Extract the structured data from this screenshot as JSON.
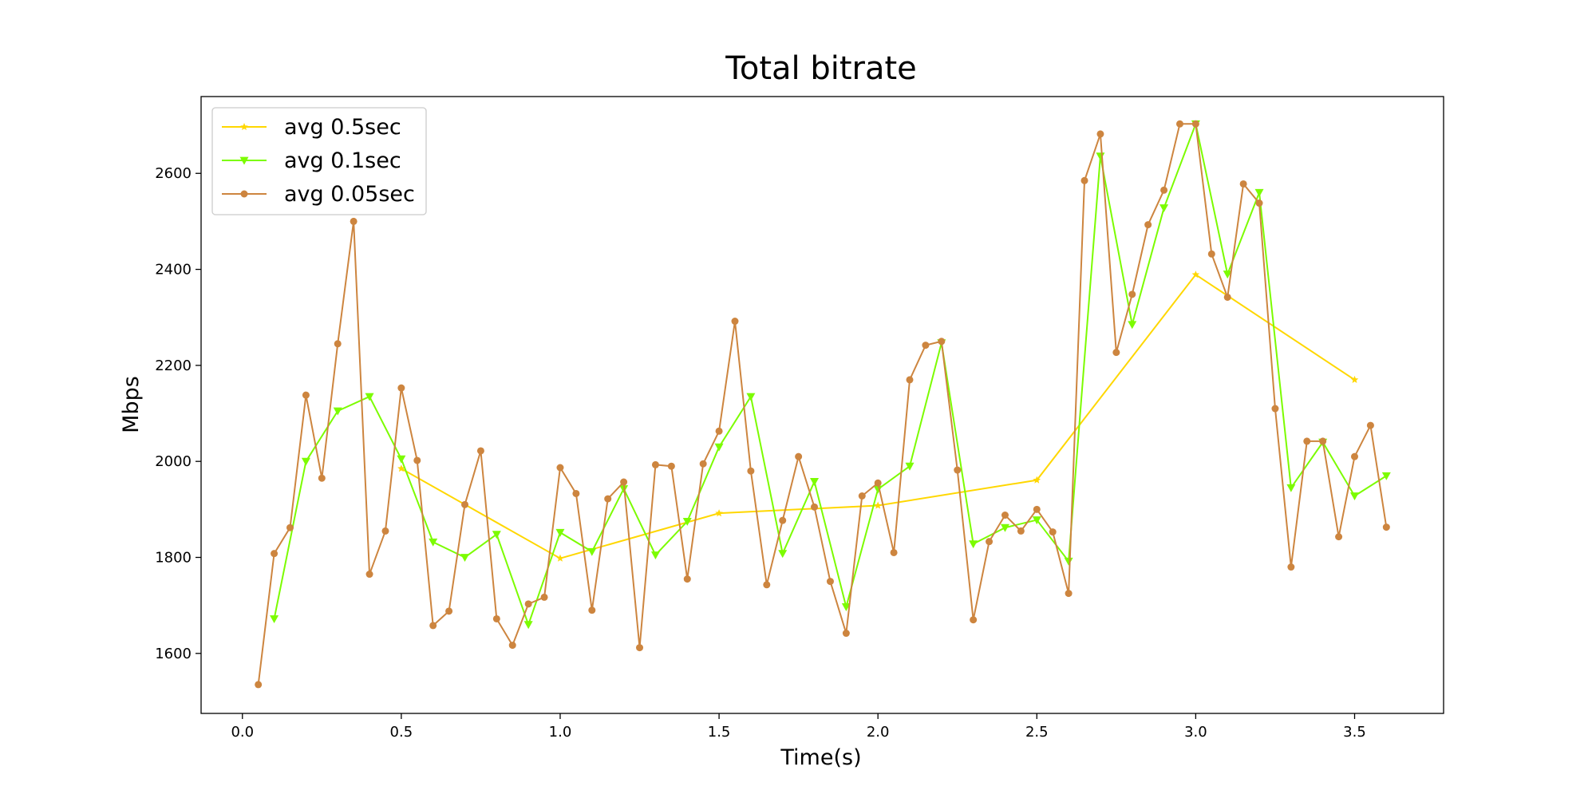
{
  "chart_data": {
    "type": "line",
    "title": "Total bitrate",
    "xlabel": "Time(s)",
    "ylabel": "Mbps",
    "xlim": [
      -0.13,
      3.78
    ],
    "ylim": [
      1475,
      2760
    ],
    "x_ticks": [
      0.0,
      0.5,
      1.0,
      1.5,
      2.0,
      2.5,
      3.0,
      3.5
    ],
    "x_tick_labels": [
      "0.0",
      "0.5",
      "1.0",
      "1.5",
      "2.0",
      "2.5",
      "3.0",
      "3.5"
    ],
    "y_ticks": [
      1600,
      1800,
      2000,
      2200,
      2400,
      2600
    ],
    "y_tick_labels": [
      "1600",
      "1800",
      "2000",
      "2200",
      "2400",
      "2600"
    ],
    "grid": false,
    "legend_position": "top-left",
    "series": [
      {
        "name": "avg 0.5sec",
        "color": "#ffd700",
        "marker": "star",
        "x": [
          0.5,
          1.0,
          1.5,
          2.0,
          2.5,
          3.0,
          3.5
        ],
        "y": [
          1985,
          1798,
          1892,
          1908,
          1961,
          2389,
          2170
        ]
      },
      {
        "name": "avg 0.1sec",
        "color": "#7cfc00",
        "marker": "triangle-down",
        "x": [
          0.1,
          0.2,
          0.3,
          0.4,
          0.5,
          0.6,
          0.7,
          0.8,
          0.9,
          1.0,
          1.1,
          1.2,
          1.3,
          1.4,
          1.5,
          1.6,
          1.7,
          1.8,
          1.9,
          2.0,
          2.1,
          2.2,
          2.3,
          2.4,
          2.5,
          2.6,
          2.7,
          2.8,
          2.9,
          3.0,
          3.1,
          3.2,
          3.3,
          3.4,
          3.5,
          3.6
        ],
        "y": [
          1672,
          2000,
          2105,
          2135,
          2005,
          1832,
          1800,
          1848,
          1660,
          1852,
          1812,
          1943,
          1805,
          1875,
          2030,
          2135,
          1808,
          1958,
          1697,
          1942,
          1990,
          2247,
          1828,
          1862,
          1878,
          1792,
          2636,
          2285,
          2528,
          2703,
          2390,
          2560,
          1945,
          2040,
          1928,
          1970
        ]
      },
      {
        "name": "avg 0.05sec",
        "color": "#cd853f",
        "marker": "circle",
        "x": [
          0.05,
          0.1,
          0.15,
          0.2,
          0.25,
          0.3,
          0.35,
          0.4,
          0.45,
          0.5,
          0.55,
          0.6,
          0.65,
          0.7,
          0.75,
          0.8,
          0.85,
          0.9,
          0.95,
          1.0,
          1.05,
          1.1,
          1.15,
          1.2,
          1.25,
          1.3,
          1.35,
          1.4,
          1.45,
          1.5,
          1.55,
          1.6,
          1.65,
          1.7,
          1.75,
          1.8,
          1.85,
          1.9,
          1.95,
          2.0,
          2.05,
          2.1,
          2.15,
          2.2,
          2.25,
          2.3,
          2.35,
          2.4,
          2.45,
          2.5,
          2.55,
          2.6,
          2.65,
          2.7,
          2.75,
          2.8,
          2.85,
          2.9,
          2.95,
          3.0,
          3.05,
          3.1,
          3.15,
          3.2,
          3.25,
          3.3,
          3.35,
          3.4,
          3.45,
          3.5,
          3.55,
          3.6
        ],
        "y": [
          1535,
          1808,
          1862,
          2138,
          1965,
          2245,
          2500,
          1765,
          1855,
          2153,
          2002,
          1658,
          1688,
          1910,
          2022,
          1672,
          1617,
          1703,
          1717,
          1987,
          1933,
          1690,
          1922,
          1957,
          1612,
          1993,
          1990,
          1755,
          1995,
          2063,
          2292,
          1980,
          1743,
          1877,
          2010,
          1905,
          1750,
          1642,
          1928,
          1955,
          1810,
          2170,
          2242,
          2250,
          1982,
          1670,
          1833,
          1888,
          1855,
          1900,
          1853,
          1725,
          2585,
          2682,
          2227,
          2348,
          2493,
          2565,
          2703,
          2703,
          2432,
          2342,
          2578,
          2538,
          2110,
          1780,
          2042,
          2042,
          1843,
          2010,
          2075,
          1863
        ]
      }
    ]
  }
}
